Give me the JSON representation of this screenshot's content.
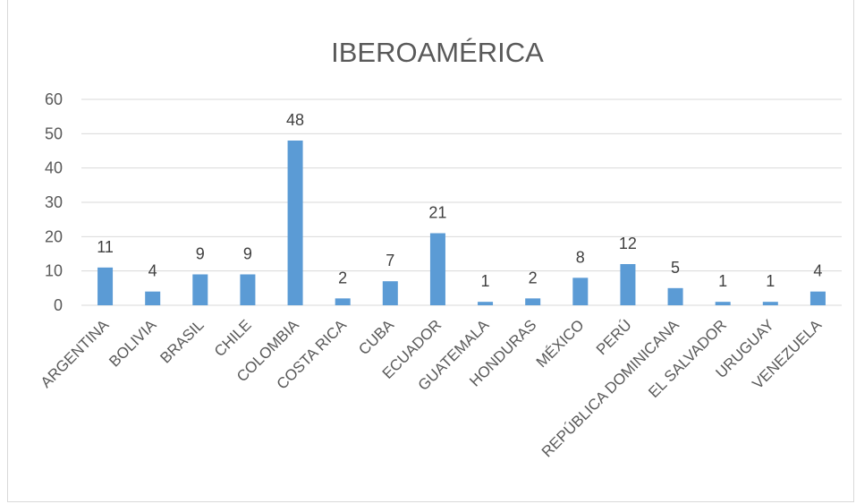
{
  "chart_data": {
    "type": "bar",
    "title": "IBEROAMÉRICA",
    "xlabel": "",
    "ylabel": "",
    "categories": [
      "ARGENTINA",
      "BOLIVIA",
      "BRASIL",
      "CHILE",
      "COLOMBIA",
      "COSTA RICA",
      "CUBA",
      "ECUADOR",
      "GUATEMALA",
      "HONDURAS",
      "MÉXICO",
      "PERÚ",
      "REPÚBLICA DOMINICANA",
      "EL SALVADOR",
      "URUGUAY",
      "VENEZUELA"
    ],
    "values": [
      11,
      4,
      9,
      9,
      48,
      2,
      7,
      21,
      1,
      2,
      8,
      12,
      5,
      1,
      1,
      4
    ],
    "ylim": [
      0,
      60
    ],
    "yticks": [
      0,
      10,
      20,
      30,
      40,
      50,
      60
    ],
    "grid": true,
    "legend": "none",
    "data_labels": true,
    "bar_color": "#5b9bd5",
    "gridline_color": "#d9d9d9",
    "text_color": "#595959"
  }
}
